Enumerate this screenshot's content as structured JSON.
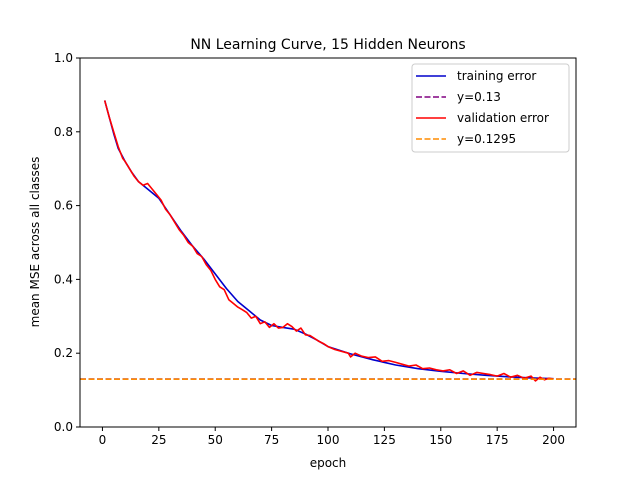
{
  "chart_data": {
    "type": "line",
    "title": "NN Learning Curve, 15 Hidden Neurons",
    "xlabel": "epoch",
    "ylabel": "mean MSE across all classes",
    "xlim": [
      -9.95,
      209.95
    ],
    "ylim": [
      0.0,
      1.0
    ],
    "xticks": [
      0,
      25,
      50,
      75,
      100,
      125,
      150,
      175,
      200
    ],
    "yticks": [
      0.0,
      0.2,
      0.4,
      0.6,
      0.8,
      1.0
    ],
    "grid": false,
    "legend_position": "upper right",
    "series": [
      {
        "name": "training error",
        "color": "#0000cc",
        "style": "solid",
        "x": [
          1,
          3,
          5,
          7,
          10,
          13,
          16,
          20,
          25,
          30,
          35,
          40,
          45,
          50,
          55,
          60,
          65,
          70,
          75,
          80,
          85,
          90,
          95,
          100,
          110,
          120,
          130,
          140,
          150,
          160,
          170,
          180,
          190,
          200
        ],
        "y": [
          0.885,
          0.84,
          0.795,
          0.755,
          0.72,
          0.69,
          0.665,
          0.645,
          0.62,
          0.575,
          0.53,
          0.49,
          0.455,
          0.415,
          0.375,
          0.34,
          0.315,
          0.29,
          0.275,
          0.27,
          0.265,
          0.252,
          0.236,
          0.218,
          0.198,
          0.182,
          0.168,
          0.158,
          0.151,
          0.145,
          0.14,
          0.136,
          0.133,
          0.131
        ]
      },
      {
        "name": "y=0.13",
        "color": "#800080",
        "style": "dashed",
        "x": [
          -9.95,
          209.95
        ],
        "y": [
          0.13,
          0.13
        ]
      },
      {
        "name": "validation error",
        "color": "#ff0000",
        "style": "solid",
        "x": [
          1,
          3,
          5,
          7,
          9,
          10,
          12,
          14,
          16,
          18,
          20,
          22,
          24,
          26,
          28,
          30,
          32,
          34,
          36,
          38,
          40,
          42,
          44,
          46,
          48,
          50,
          52,
          54,
          56,
          58,
          60,
          62,
          64,
          66,
          68,
          70,
          72,
          74,
          76,
          78,
          80,
          82,
          84,
          86,
          88,
          90,
          92,
          94,
          96,
          98,
          100,
          103,
          106,
          109,
          110,
          112,
          115,
          118,
          121,
          124,
          127,
          130,
          133,
          136,
          139,
          142,
          145,
          148,
          151,
          154,
          157,
          160,
          163,
          166,
          169,
          172,
          175,
          178,
          181,
          184,
          187,
          190,
          192,
          194,
          196,
          198,
          200
        ],
        "y": [
          0.885,
          0.84,
          0.8,
          0.76,
          0.728,
          0.72,
          0.7,
          0.68,
          0.665,
          0.655,
          0.66,
          0.645,
          0.63,
          0.615,
          0.59,
          0.575,
          0.555,
          0.535,
          0.52,
          0.5,
          0.49,
          0.47,
          0.462,
          0.44,
          0.425,
          0.4,
          0.38,
          0.372,
          0.345,
          0.335,
          0.325,
          0.318,
          0.31,
          0.295,
          0.3,
          0.28,
          0.285,
          0.27,
          0.28,
          0.268,
          0.27,
          0.28,
          0.272,
          0.26,
          0.268,
          0.25,
          0.248,
          0.24,
          0.232,
          0.226,
          0.218,
          0.21,
          0.205,
          0.2,
          0.19,
          0.2,
          0.192,
          0.188,
          0.19,
          0.178,
          0.18,
          0.175,
          0.17,
          0.165,
          0.168,
          0.158,
          0.16,
          0.155,
          0.152,
          0.155,
          0.145,
          0.152,
          0.14,
          0.148,
          0.145,
          0.142,
          0.138,
          0.145,
          0.135,
          0.14,
          0.132,
          0.138,
          0.125,
          0.135,
          0.128,
          0.132,
          0.13
        ]
      },
      {
        "name": "y=0.1295",
        "color": "#ff8c00",
        "style": "dashed",
        "x": [
          -9.95,
          209.95
        ],
        "y": [
          0.1295,
          0.1295
        ]
      }
    ]
  }
}
